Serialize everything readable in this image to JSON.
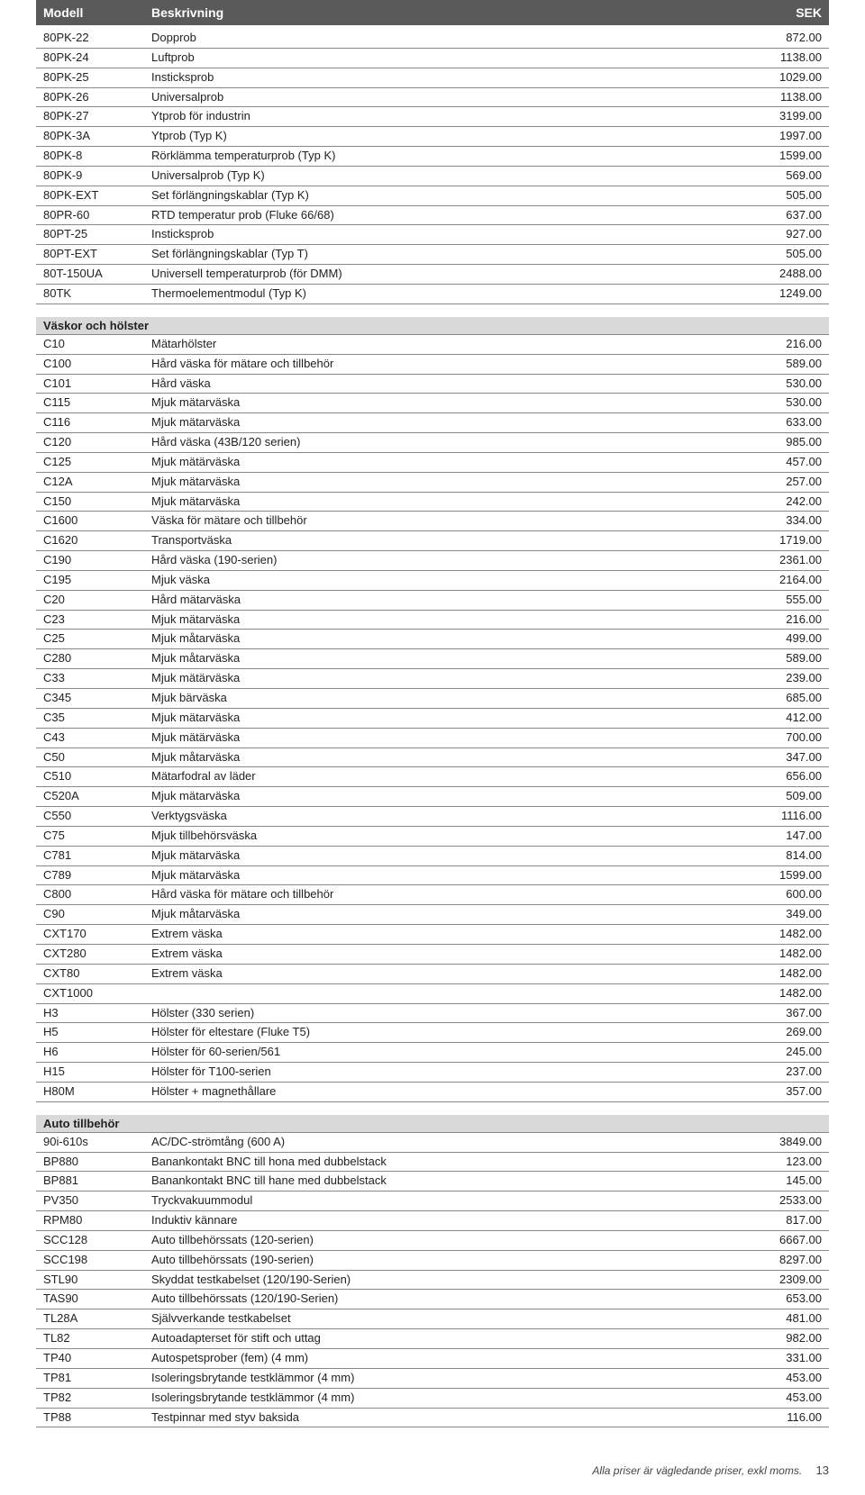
{
  "header": {
    "model": "Modell",
    "desc": "Beskrivning",
    "sek": "SEK"
  },
  "sections": [
    {
      "title": null,
      "rows": [
        {
          "model": "80PK-22",
          "desc": "Dopprob",
          "sek": "872.00"
        },
        {
          "model": "80PK-24",
          "desc": "Luftprob",
          "sek": "1138.00"
        },
        {
          "model": "80PK-25",
          "desc": "Insticksprob",
          "sek": "1029.00"
        },
        {
          "model": "80PK-26",
          "desc": "Universalprob",
          "sek": "1138.00"
        },
        {
          "model": "80PK-27",
          "desc": "Ytprob för industrin",
          "sek": "3199.00"
        },
        {
          "model": "80PK-3A",
          "desc": "Ytprob (Typ K)",
          "sek": "1997.00"
        },
        {
          "model": "80PK-8",
          "desc": "Rörklämma temperaturprob (Typ K)",
          "sek": "1599.00"
        },
        {
          "model": "80PK-9",
          "desc": "Universalprob (Typ K)",
          "sek": "569.00"
        },
        {
          "model": "80PK-EXT",
          "desc": "Set förlängningskablar (Typ K)",
          "sek": "505.00"
        },
        {
          "model": "80PR-60",
          "desc": "RTD temperatur prob (Fluke 66/68)",
          "sek": "637.00"
        },
        {
          "model": "80PT-25",
          "desc": "Insticksprob",
          "sek": "927.00"
        },
        {
          "model": "80PT-EXT",
          "desc": "Set förlängningskablar (Typ T)",
          "sek": "505.00"
        },
        {
          "model": "80T-150UA",
          "desc": "Universell temperaturprob (för DMM)",
          "sek": "2488.00"
        },
        {
          "model": "80TK",
          "desc": "Thermoelementmodul (Typ K)",
          "sek": "1249.00"
        }
      ]
    },
    {
      "title": "Väskor och hölster",
      "rows": [
        {
          "model": "C10",
          "desc": "Mätarhölster",
          "sek": "216.00"
        },
        {
          "model": "C100",
          "desc": "Hård väska för mätare och tillbehör",
          "sek": "589.00"
        },
        {
          "model": "C101",
          "desc": "Hård väska",
          "sek": "530.00"
        },
        {
          "model": "C115",
          "desc": "Mjuk mätarväska",
          "sek": "530.00"
        },
        {
          "model": "C116",
          "desc": "Mjuk mätarväska",
          "sek": "633.00"
        },
        {
          "model": "C120",
          "desc": "Hård väska (43B/120 serien)",
          "sek": "985.00"
        },
        {
          "model": "C125",
          "desc": "Mjuk mätärväska",
          "sek": "457.00"
        },
        {
          "model": "C12A",
          "desc": "Mjuk mätarväska",
          "sek": "257.00"
        },
        {
          "model": "C150",
          "desc": "Mjuk mätarväska",
          "sek": "242.00"
        },
        {
          "model": "C1600",
          "desc": "Väska för mätare och tillbehör",
          "sek": "334.00"
        },
        {
          "model": "C1620",
          "desc": "Transportväska",
          "sek": "1719.00"
        },
        {
          "model": "C190",
          "desc": "Hård väska (190-serien)",
          "sek": "2361.00"
        },
        {
          "model": "C195",
          "desc": "Mjuk väska",
          "sek": "2164.00"
        },
        {
          "model": "C20",
          "desc": "Hård mätarväska",
          "sek": "555.00"
        },
        {
          "model": "C23",
          "desc": "Mjuk mätarväska",
          "sek": "216.00"
        },
        {
          "model": "C25",
          "desc": "Mjuk måtarväska",
          "sek": "499.00"
        },
        {
          "model": "C280",
          "desc": "Mjuk måtarväska",
          "sek": "589.00"
        },
        {
          "model": "C33",
          "desc": "Mjuk mätärväska",
          "sek": "239.00"
        },
        {
          "model": "C345",
          "desc": "Mjuk bärväska",
          "sek": "685.00"
        },
        {
          "model": "C35",
          "desc": "Mjuk mätarväska",
          "sek": "412.00"
        },
        {
          "model": "C43",
          "desc": "Mjuk mätärväska",
          "sek": "700.00"
        },
        {
          "model": "C50",
          "desc": "Mjuk måtarväska",
          "sek": "347.00"
        },
        {
          "model": "C510",
          "desc": "Mätarfodral av läder",
          "sek": "656.00"
        },
        {
          "model": "C520A",
          "desc": "Mjuk mätarväska",
          "sek": "509.00"
        },
        {
          "model": "C550",
          "desc": "Verktygsväska",
          "sek": "1116.00"
        },
        {
          "model": "C75",
          "desc": "Mjuk tillbehörsväska",
          "sek": "147.00"
        },
        {
          "model": "C781",
          "desc": "Mjuk mätarväska",
          "sek": "814.00"
        },
        {
          "model": "C789",
          "desc": "Mjuk mätarväska",
          "sek": "1599.00"
        },
        {
          "model": "C800",
          "desc": "Hård väska för mätare och tillbehör",
          "sek": "600.00"
        },
        {
          "model": "C90",
          "desc": "Mjuk måtarväska",
          "sek": "349.00"
        },
        {
          "model": "CXT170",
          "desc": "Extrem väska",
          "sek": "1482.00"
        },
        {
          "model": "CXT280",
          "desc": "Extrem väska",
          "sek": "1482.00"
        },
        {
          "model": "CXT80",
          "desc": "Extrem väska",
          "sek": "1482.00"
        },
        {
          "model": "CXT1000",
          "desc": "",
          "sek": "1482.00"
        },
        {
          "model": "H3",
          "desc": "Hölster (330 serien)",
          "sek": "367.00"
        },
        {
          "model": "H5",
          "desc": "Hölster för eltestare (Fluke T5)",
          "sek": "269.00"
        },
        {
          "model": "H6",
          "desc": "Hölster för 60-serien/561",
          "sek": "245.00"
        },
        {
          "model": "H15",
          "desc": "Hölster för T100-serien",
          "sek": "237.00"
        },
        {
          "model": "H80M",
          "desc": "Hölster + magnethållare",
          "sek": "357.00"
        }
      ]
    },
    {
      "title": "Auto tillbehör",
      "rows": [
        {
          "model": "90i-610s",
          "desc": "AC/DC-strömtång  (600 A)",
          "sek": "3849.00"
        },
        {
          "model": "BP880",
          "desc": "Banankontakt BNC till hona med dubbelstack",
          "sek": "123.00"
        },
        {
          "model": "BP881",
          "desc": "Banankontakt BNC till hane med dubbelstack",
          "sek": "145.00"
        },
        {
          "model": "PV350",
          "desc": "Tryckvakuummodul",
          "sek": "2533.00"
        },
        {
          "model": "RPM80",
          "desc": "Induktiv kännare",
          "sek": "817.00"
        },
        {
          "model": "SCC128",
          "desc": "Auto tillbehörssats (120-serien)",
          "sek": "6667.00"
        },
        {
          "model": "SCC198",
          "desc": "Auto tillbehörssats (190-serien)",
          "sek": "8297.00"
        },
        {
          "model": "STL90",
          "desc": "Skyddat testkabelset (120/190-Serien)",
          "sek": "2309.00"
        },
        {
          "model": "TAS90",
          "desc": "Auto tillbehörssats (120/190-Serien)",
          "sek": "653.00"
        },
        {
          "model": "TL28A",
          "desc": "Självverkande testkabelset",
          "sek": "481.00"
        },
        {
          "model": "TL82",
          "desc": "Autoadapterset för stift och uttag",
          "sek": "982.00"
        },
        {
          "model": "TP40",
          "desc": "Autospetsprober (fem) (4 mm)",
          "sek": "331.00"
        },
        {
          "model": "TP81",
          "desc": "Isoleringsbrytande testklämmor (4 mm)",
          "sek": "453.00"
        },
        {
          "model": "TP82",
          "desc": "Isoleringsbrytande testklämmor (4 mm)",
          "sek": "453.00"
        },
        {
          "model": "TP88",
          "desc": "Testpinnar med styv baksida",
          "sek": "116.00"
        }
      ]
    }
  ],
  "footer": {
    "text": "Alla priser är vägledande priser, exkl moms.",
    "page": "13"
  }
}
